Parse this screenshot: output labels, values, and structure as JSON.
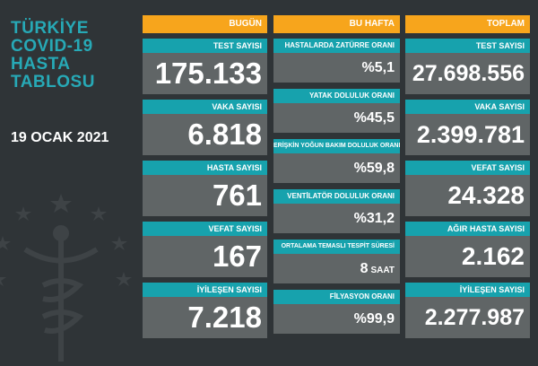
{
  "title_lines": [
    "TÜRKİYE",
    "COVID-19",
    "HASTA",
    "TABLOSU"
  ],
  "date": "19 OCAK 2021",
  "columns": {
    "today": {
      "header": "BUGÜN",
      "cards": [
        {
          "label": "TEST SAYISI",
          "value": "175.133"
        },
        {
          "label": "VAKA SAYISI",
          "value": "6.818"
        },
        {
          "label": "HASTA SAYISI",
          "value": "761"
        },
        {
          "label": "VEFAT SAYISI",
          "value": "167"
        },
        {
          "label": "İYİLEŞEN SAYISI",
          "value": "7.218"
        }
      ]
    },
    "week": {
      "header": "BU HAFTA",
      "cards": [
        {
          "label": "HASTALARDA ZATÜRRE ORANI",
          "value": "%5,1"
        },
        {
          "label": "YATAK DOLULUK ORANI",
          "value": "%45,5"
        },
        {
          "label": "ERİŞKİN YOĞUN BAKIM DOLULUK ORANI",
          "value": "%59,8"
        },
        {
          "label": "VENTİLATÖR DOLULUK ORANI",
          "value": "%31,2"
        },
        {
          "label": "ORTALAMA TEMASLI TESPİT SÜRESİ",
          "value": "8",
          "unit": "SAAT"
        },
        {
          "label": "FİLYASYON ORANI",
          "value": "%99,9"
        }
      ]
    },
    "total": {
      "header": "TOPLAM",
      "cards": [
        {
          "label": "TEST SAYISI",
          "value": "27.698.556"
        },
        {
          "label": "VAKA SAYISI",
          "value": "2.399.781"
        },
        {
          "label": "VEFAT SAYISI",
          "value": "24.328"
        },
        {
          "label": "AĞIR HASTA SAYISI",
          "value": "2.162"
        },
        {
          "label": "İYİLEŞEN SAYISI",
          "value": "2.277.987"
        }
      ]
    }
  },
  "colors": {
    "header_orange": "#f7a51c",
    "label_teal": "#17a2ad",
    "card_gray": "#606566",
    "background": "#2f3437"
  }
}
